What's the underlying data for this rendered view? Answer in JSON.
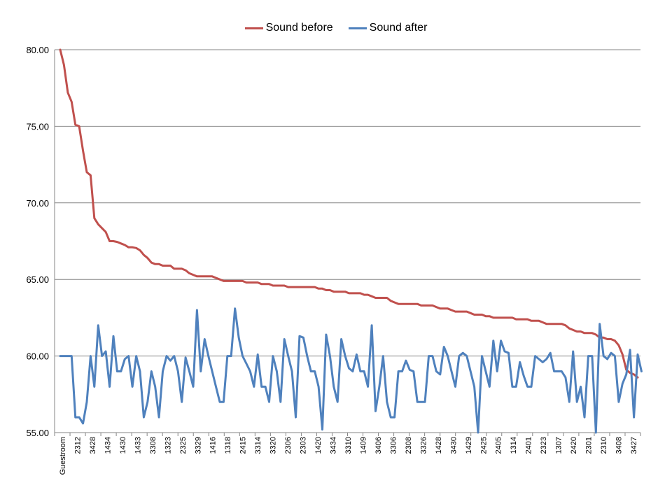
{
  "chart_data": {
    "type": "line",
    "title": "",
    "xlabel": "",
    "ylabel": "",
    "ylim": [
      55,
      80
    ],
    "yticks": [
      "55.00",
      "60.00",
      "65.00",
      "70.00",
      "75.00",
      "80.00"
    ],
    "grid": "horizontal",
    "legend_position": "top-center",
    "categories_visible": [
      "Guestroom",
      "2312",
      "3428",
      "1434",
      "1430",
      "1433",
      "3308",
      "1323",
      "2325",
      "3329",
      "1416",
      "1318",
      "2415",
      "3314",
      "3320",
      "2306",
      "2303",
      "1420",
      "3434",
      "3310",
      "1409",
      "3406",
      "3306",
      "2308",
      "3326",
      "1428",
      "3430",
      "1429",
      "2425",
      "2405",
      "1314",
      "2401",
      "2323",
      "1307",
      "2420",
      "2301",
      "2310",
      "3408",
      "3427"
    ],
    "series": [
      {
        "name": "Sound before",
        "color": "#c0504d",
        "values": [
          80.0,
          79.0,
          77.2,
          76.6,
          75.1,
          75.0,
          73.4,
          72.0,
          71.8,
          69.0,
          68.6,
          68.35,
          68.1,
          67.5,
          67.5,
          67.45,
          67.35,
          67.25,
          67.1,
          67.1,
          67.05,
          66.9,
          66.6,
          66.4,
          66.1,
          66.0,
          66.0,
          65.9,
          65.9,
          65.9,
          65.7,
          65.7,
          65.7,
          65.6,
          65.4,
          65.3,
          65.2,
          65.2,
          65.2,
          65.2,
          65.2,
          65.1,
          65.0,
          64.9,
          64.9,
          64.9,
          64.9,
          64.9,
          64.9,
          64.8,
          64.8,
          64.8,
          64.8,
          64.7,
          64.7,
          64.7,
          64.6,
          64.6,
          64.6,
          64.6,
          64.5,
          64.5,
          64.5,
          64.5,
          64.5,
          64.5,
          64.5,
          64.5,
          64.4,
          64.4,
          64.3,
          64.3,
          64.2,
          64.2,
          64.2,
          64.2,
          64.1,
          64.1,
          64.1,
          64.1,
          64.0,
          64.0,
          63.9,
          63.8,
          63.8,
          63.8,
          63.8,
          63.6,
          63.5,
          63.4,
          63.4,
          63.4,
          63.4,
          63.4,
          63.4,
          63.3,
          63.3,
          63.3,
          63.3,
          63.2,
          63.1,
          63.1,
          63.1,
          63.0,
          62.9,
          62.9,
          62.9,
          62.9,
          62.8,
          62.7,
          62.7,
          62.7,
          62.6,
          62.6,
          62.5,
          62.5,
          62.5,
          62.5,
          62.5,
          62.5,
          62.4,
          62.4,
          62.4,
          62.4,
          62.3,
          62.3,
          62.3,
          62.2,
          62.1,
          62.1,
          62.1,
          62.1,
          62.1,
          62.0,
          61.8,
          61.7,
          61.6,
          61.6,
          61.5,
          61.5,
          61.5,
          61.4,
          61.2,
          61.2,
          61.1,
          61.1,
          61.0,
          60.7,
          60.1,
          59.1,
          58.9,
          58.8,
          58.6
        ]
      },
      {
        "name": "Sound after",
        "color": "#4f81bd",
        "values": [
          60.0,
          60.0,
          60.0,
          60.0,
          56.0,
          56.0,
          55.6,
          57.0,
          60.0,
          58.0,
          62.0,
          60.0,
          60.3,
          58.0,
          61.3,
          59.0,
          59.0,
          59.8,
          60.0,
          58.0,
          60.0,
          59.0,
          56.0,
          57.0,
          59.0,
          58.0,
          56.0,
          59.0,
          60.0,
          59.7,
          60.0,
          59.0,
          57.0,
          59.9,
          59.0,
          58.0,
          63.0,
          59.0,
          61.1,
          60.0,
          59.0,
          58.0,
          57.0,
          57.0,
          60.0,
          60.0,
          63.1,
          61.2,
          60.0,
          59.5,
          59.0,
          58.0,
          60.1,
          58.0,
          58.0,
          57.0,
          60.0,
          59.0,
          57.0,
          61.1,
          60.0,
          59.0,
          56.0,
          61.3,
          61.2,
          60.0,
          59.0,
          59.0,
          58.0,
          55.2,
          61.4,
          60.0,
          58.0,
          57.0,
          61.1,
          60.0,
          59.2,
          59.0,
          60.1,
          59.0,
          59.0,
          58.0,
          62.0,
          56.4,
          58.0,
          60.0,
          57.0,
          56.0,
          56.0,
          59.0,
          59.0,
          59.7,
          59.1,
          59.0,
          57.0,
          57.0,
          57.0,
          60.0,
          60.0,
          59.0,
          58.8,
          60.6,
          60.0,
          59.0,
          58.0,
          60.0,
          60.2,
          60.0,
          59.0,
          58.0,
          55.0,
          60.0,
          59.0,
          58.0,
          61.0,
          59.0,
          61.0,
          60.3,
          60.2,
          58.0,
          58.0,
          59.6,
          58.7,
          58.0,
          58.0,
          60.0,
          59.8,
          59.6,
          59.8,
          60.2,
          59.0,
          59.0,
          59.0,
          58.6,
          57.0,
          60.3,
          57.0,
          58.0,
          56.0,
          60.0,
          60.0,
          55.0,
          62.1,
          60.0,
          59.8,
          60.2,
          60.0,
          57.0,
          58.2,
          58.8,
          60.4,
          56.0,
          60.1,
          59.0
        ]
      }
    ]
  }
}
